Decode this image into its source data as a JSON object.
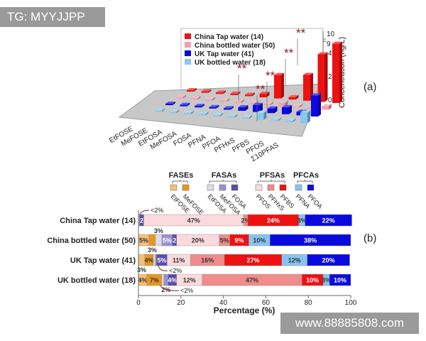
{
  "watermarks": {
    "top_left": "TG: MYYJJPP",
    "bottom_right": "www.88885808.com"
  },
  "panel_labels": {
    "a": "(a)",
    "b": "(b)"
  },
  "colors": {
    "china_tap": "#ee1111",
    "china_bottled": "#f4a0b0",
    "uk_tap": "#0a0ae0",
    "uk_bottled": "#88c8f0",
    "EtFOSE": "#f5c07a",
    "MeFOSE": "#e8961e",
    "EtFOSA": "#dcdcec",
    "MeFOSA": "#9a90d0",
    "FOSA": "#5b4ea8",
    "PFOS": "#fadadd",
    "PFHxS": "#f08c8c",
    "PFBS": "#ee1111",
    "PFNA": "#88c4f0",
    "PFOA": "#0a0ae0"
  },
  "chart_data": [
    {
      "type": "bar",
      "subtype": "3d-grouped",
      "ylabel": "Concentration (ng/L)",
      "yticks": [
        "0",
        "2",
        "4",
        "9",
        "10"
      ],
      "axis_break": true,
      "legend_placement": "top-left",
      "categories": [
        "EtFOSE",
        "MeFOSE",
        "EtFOSA",
        "MeFOSA",
        "FOSA",
        "PFNA",
        "PFOA",
        "PFHxS",
        "PFBS",
        "PFOS",
        "Σ10PFAS"
      ],
      "series": [
        {
          "name": "China Tap water (14)",
          "values": [
            0.1,
            0.1,
            0.1,
            0.1,
            0.1,
            0.3,
            2.0,
            0.2,
            2.2,
            4.3,
            9.5
          ]
        },
        {
          "name": "China bottled water (50)",
          "values": [
            0.05,
            0.05,
            0.05,
            0.05,
            0.05,
            0.05,
            0.05,
            0.3,
            0.05,
            0.05,
            0.3
          ]
        },
        {
          "name": "UK Tap water (41)",
          "values": [
            0.1,
            0.1,
            0.1,
            0.05,
            0.1,
            0.3,
            0.6,
            0.4,
            0.6,
            0.3,
            1.8
          ]
        },
        {
          "name": "UK bottled water (18)",
          "values": [
            0.05,
            0.05,
            0.05,
            0.05,
            0.05,
            0.05,
            0.05,
            0.6,
            0.05,
            0.05,
            0.9
          ]
        }
      ],
      "annotations": [
        {
          "text": "**",
          "category": "PFOA"
        },
        {
          "text": "**",
          "category": "PFHxS"
        },
        {
          "text": "**",
          "category": "PFBS"
        },
        {
          "text": "**",
          "category": "PFOS"
        },
        {
          "text": "**",
          "category": "Σ10PFAS"
        }
      ]
    },
    {
      "type": "bar",
      "subtype": "stacked-horizontal",
      "xlabel": "Percentage (%)",
      "xlim": [
        0,
        100
      ],
      "xticks": [
        "0",
        "20",
        "40",
        "60",
        "80",
        "100"
      ],
      "legend_groups": [
        {
          "name": "FASEs",
          "items": [
            "EtFOSE",
            "MeFOSE"
          ]
        },
        {
          "name": "FASAs",
          "items": [
            "EtFOSA",
            "MeFOSA",
            "FOSA"
          ]
        },
        {
          "name": "PFSAs",
          "items": [
            "PFOS",
            "PFHxS",
            "PFBS"
          ]
        },
        {
          "name": "PFCAs",
          "items": [
            "PFNA",
            "PFOA"
          ]
        }
      ],
      "components": [
        "EtFOSE",
        "MeFOSE",
        "EtFOSA",
        "MeFOSA",
        "FOSA",
        "PFOS",
        "PFHxS",
        "PFBS",
        "PFNA",
        "PFOA"
      ],
      "rows": [
        {
          "name": "China Tap water (14)",
          "values": [
            0.5,
            0,
            0,
            0,
            2,
            47,
            2,
            24,
            3,
            22
          ],
          "labels": [
            "",
            "",
            "",
            "",
            "2",
            "47%",
            "2%",
            "24%",
            "3%",
            "22%"
          ],
          "note": "<2%"
        },
        {
          "name": "China bottled water (50)",
          "values": [
            5,
            3,
            3,
            5,
            2,
            20,
            5,
            9,
            10,
            38
          ],
          "labels": [
            "5%",
            "3%",
            "3%",
            "5%",
            "2",
            "20%",
            "5%",
            "9%",
            "10%",
            "38%"
          ]
        },
        {
          "name": "UK Tap water (41)",
          "values": [
            3,
            4,
            1,
            0.5,
            5,
            11,
            16,
            27,
            12,
            20
          ],
          "labels": [
            "3%",
            "4%",
            "",
            "",
            "5%",
            "11%",
            "16%",
            "27%",
            "12%",
            "20%"
          ],
          "note": "<2%"
        },
        {
          "name": "UK bottled water (18)",
          "values": [
            4,
            7,
            1,
            2,
            4,
            12,
            47,
            10,
            3,
            10
          ],
          "labels": [
            "4%",
            "7%",
            "",
            "2%",
            "4%",
            "12%",
            "47%",
            "10%",
            "3%",
            "10%"
          ],
          "note": "<2%"
        }
      ]
    }
  ]
}
